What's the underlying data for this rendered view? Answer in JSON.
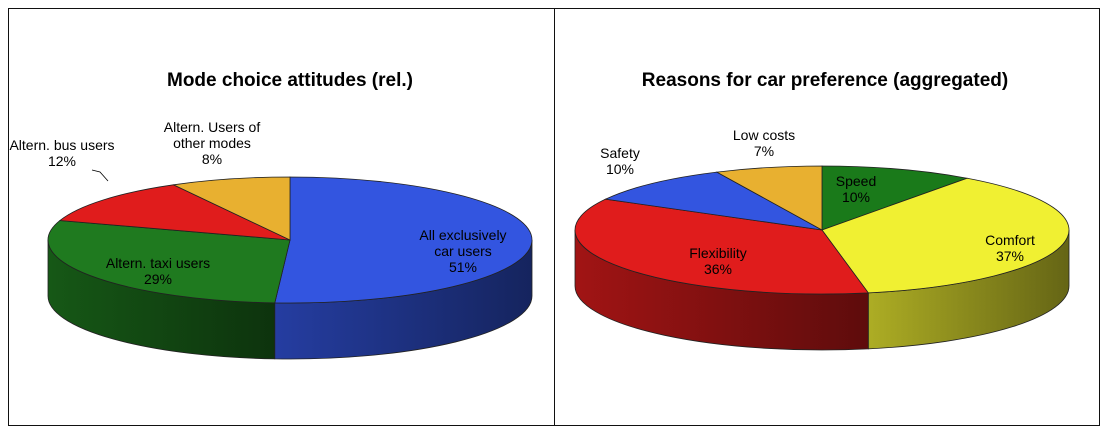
{
  "chart_data": [
    {
      "type": "pie",
      "title": "Mode choice attitudes (rel.)",
      "categories": [
        "All exclusively car users",
        "Altern. taxi users",
        "Altern. bus users",
        "Altern. Users of other modes"
      ],
      "values": [
        51,
        29,
        12,
        8
      ],
      "value_labels": [
        "51%",
        "29%",
        "12%",
        "8%"
      ],
      "colors": [
        "#3355e0",
        "#1f7a1f",
        "#e01c1c",
        "#e8b030"
      ]
    },
    {
      "type": "pie",
      "title": "Reasons for car preference (aggregated)",
      "categories": [
        "Speed",
        "Comfort",
        "Flexibility",
        "Safety",
        "Low costs"
      ],
      "values": [
        10,
        37,
        36,
        10,
        7
      ],
      "value_labels": [
        "10%",
        "37%",
        "36%",
        "10%",
        "7%"
      ],
      "colors": [
        "#1a7a1a",
        "#f0f032",
        "#e01c1c",
        "#3355e0",
        "#e8b030"
      ]
    }
  ]
}
